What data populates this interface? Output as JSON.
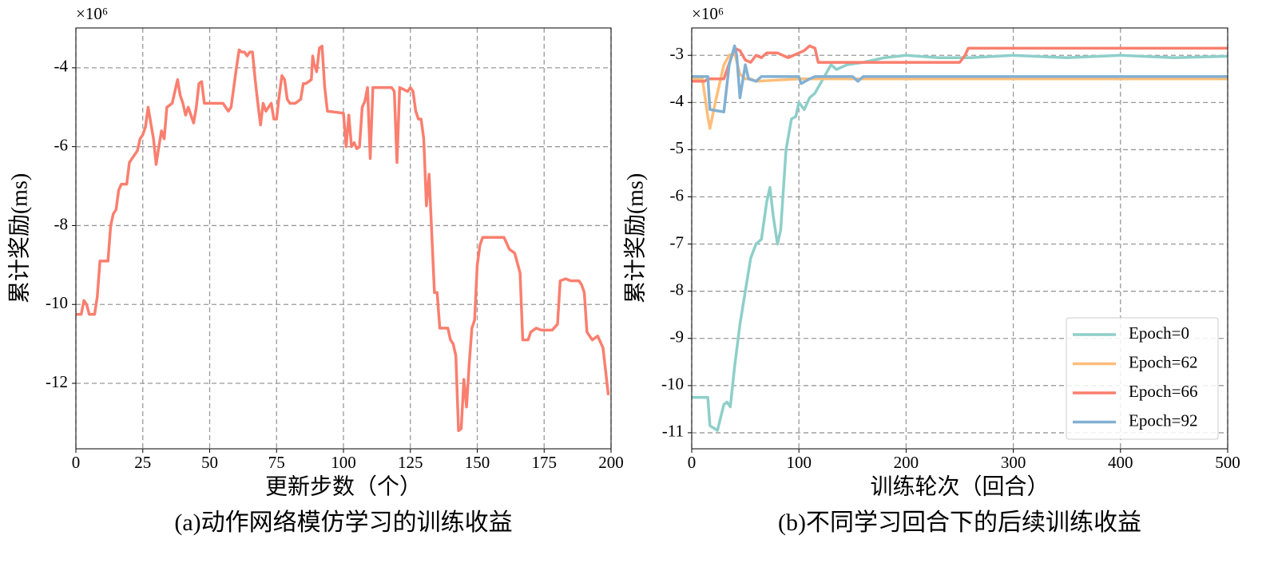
{
  "chart_data": [
    {
      "type": "line",
      "caption": "(a)动作网络模仿学习的训练收益",
      "x_label": "更新步数（个）",
      "y_label": "累计奖励(ms)",
      "y_scale_label": "×10⁶",
      "color": "#fa7f6f",
      "grid": true,
      "xlim": [
        0,
        200
      ],
      "xticks": [
        0,
        25,
        50,
        75,
        100,
        125,
        150,
        175,
        200
      ],
      "ylim": [
        -13.66,
        -2.99
      ],
      "yticks": [
        -12,
        -10,
        -8,
        -6,
        -4
      ],
      "x": [
        0,
        2,
        3,
        4,
        5,
        7,
        8,
        9,
        12,
        13,
        14,
        15,
        16,
        17,
        19,
        20,
        22,
        23,
        24,
        25,
        26,
        27,
        28,
        29,
        30,
        31,
        32,
        33,
        34,
        35,
        36,
        37,
        38,
        39,
        40,
        41,
        42,
        44,
        45,
        46,
        47,
        48,
        50,
        55,
        57,
        58,
        60,
        61,
        62,
        63,
        64,
        65,
        66,
        67,
        68,
        69,
        70,
        71,
        72,
        73,
        74,
        75,
        76,
        77,
        78,
        79,
        80,
        82,
        84,
        85,
        86,
        88,
        88.5,
        89,
        90,
        91,
        92,
        93,
        94,
        100,
        101,
        102,
        103,
        104,
        105,
        106,
        107,
        108,
        109,
        110,
        111,
        118,
        119,
        120,
        121,
        124,
        125,
        126,
        127,
        128,
        129,
        130,
        131,
        132,
        133,
        134,
        135,
        136,
        139,
        140,
        141,
        142,
        143,
        144,
        145,
        146,
        147,
        148,
        149,
        150,
        151,
        152,
        160,
        162,
        164,
        166,
        167,
        169,
        170,
        172,
        174,
        178,
        180,
        181,
        183,
        185,
        188,
        189,
        190,
        191,
        193,
        195,
        197,
        199
      ],
      "values": [
        -10.25,
        -10.25,
        -9.9,
        -10.0,
        -10.25,
        -10.25,
        -9.8,
        -8.9,
        -8.9,
        -8.0,
        -7.7,
        -7.6,
        -7.1,
        -6.95,
        -6.95,
        -6.4,
        -6.2,
        -6.1,
        -5.8,
        -5.7,
        -5.5,
        -5.0,
        -5.4,
        -5.8,
        -6.45,
        -6.0,
        -5.6,
        -5.8,
        -5.0,
        -4.95,
        -4.9,
        -4.6,
        -4.3,
        -4.7,
        -4.9,
        -5.2,
        -5.0,
        -5.4,
        -5.0,
        -4.4,
        -4.35,
        -4.9,
        -4.9,
        -4.9,
        -5.1,
        -5.0,
        -4.0,
        -3.55,
        -3.6,
        -3.6,
        -3.7,
        -3.6,
        -3.6,
        -4.3,
        -4.9,
        -5.45,
        -4.9,
        -5.1,
        -5.0,
        -4.9,
        -5.3,
        -5.3,
        -4.7,
        -4.2,
        -4.3,
        -4.8,
        -4.9,
        -4.9,
        -4.8,
        -4.4,
        -4.4,
        -4.3,
        -3.7,
        -3.9,
        -4.1,
        -3.5,
        -3.45,
        -4.5,
        -5.1,
        -5.15,
        -6.0,
        -5.2,
        -6.0,
        -5.9,
        -6.05,
        -6.0,
        -5.0,
        -4.85,
        -4.5,
        -6.3,
        -4.5,
        -4.5,
        -4.6,
        -6.4,
        -4.5,
        -4.6,
        -4.5,
        -4.6,
        -5.1,
        -5.3,
        -5.3,
        -5.8,
        -7.5,
        -6.7,
        -8.2,
        -9.7,
        -9.7,
        -10.6,
        -10.6,
        -10.9,
        -11.0,
        -11.3,
        -13.2,
        -13.15,
        -11.9,
        -12.6,
        -11.5,
        -10.6,
        -10.4,
        -9.0,
        -8.5,
        -8.3,
        -8.3,
        -8.6,
        -8.7,
        -9.2,
        -10.9,
        -10.9,
        -10.7,
        -10.6,
        -10.65,
        -10.65,
        -10.5,
        -9.4,
        -9.35,
        -9.4,
        -9.4,
        -9.5,
        -9.7,
        -10.7,
        -10.9,
        -10.8,
        -11.1,
        -12.3
      ]
    },
    {
      "type": "line",
      "caption": "(b)不同学习回合下的后续训练收益",
      "x_label": "训练轮次（回合）",
      "y_label": "累计奖励(ms)",
      "y_scale_label": "×10⁶",
      "grid": true,
      "legend": "lower right",
      "xlim": [
        0,
        500
      ],
      "xticks": [
        0,
        100,
        200,
        300,
        400,
        500
      ],
      "ylim": [
        -11.34,
        -2.42
      ],
      "yticks": [
        -11,
        -10,
        -9,
        -8,
        -7,
        -6,
        -5,
        -4,
        -3
      ],
      "series": [
        {
          "name": "Epoch=0",
          "color": "#8ecfc9",
          "x": [
            0,
            15,
            17,
            24,
            30,
            33,
            36,
            40,
            45,
            50,
            55,
            60,
            65,
            70,
            73,
            76,
            80,
            83,
            88,
            93,
            97,
            100,
            105,
            110,
            115,
            120,
            125,
            130,
            135,
            145,
            160,
            180,
            200,
            230,
            260,
            300,
            350,
            400,
            450,
            500
          ],
          "values": [
            -10.25,
            -10.25,
            -10.85,
            -10.95,
            -10.4,
            -10.35,
            -10.45,
            -9.6,
            -8.7,
            -8.0,
            -7.3,
            -7.0,
            -6.9,
            -6.1,
            -5.8,
            -6.4,
            -7.0,
            -6.7,
            -5.0,
            -4.35,
            -4.3,
            -4.0,
            -4.15,
            -3.9,
            -3.8,
            -3.6,
            -3.4,
            -3.2,
            -3.3,
            -3.2,
            -3.15,
            -3.05,
            -3.0,
            -3.05,
            -3.05,
            -3.0,
            -3.05,
            -3.0,
            -3.05,
            -3.02
          ]
        },
        {
          "name": "Epoch=62",
          "color": "#ffbe7a",
          "x": [
            0,
            10,
            15,
            17,
            22,
            27,
            30,
            35,
            40,
            45,
            50,
            55,
            60,
            100,
            500
          ],
          "values": [
            -3.5,
            -3.5,
            -4.3,
            -4.55,
            -4.0,
            -3.5,
            -3.2,
            -3.0,
            -2.95,
            -3.4,
            -3.5,
            -3.5,
            -3.55,
            -3.5,
            -3.5
          ]
        },
        {
          "name": "Epoch=66",
          "color": "#fa7f6f",
          "x": [
            0,
            12,
            15,
            30,
            33,
            40,
            45,
            50,
            55,
            60,
            65,
            70,
            80,
            90,
            100,
            105,
            110,
            115,
            118,
            150,
            250,
            255,
            258,
            500
          ],
          "values": [
            -3.55,
            -3.55,
            -3.5,
            -3.5,
            -3.3,
            -2.85,
            -2.9,
            -3.1,
            -3.15,
            -3.0,
            -3.05,
            -2.95,
            -2.95,
            -3.05,
            -2.95,
            -2.9,
            -2.8,
            -2.85,
            -3.15,
            -3.15,
            -3.15,
            -3.0,
            -2.85,
            -2.85
          ]
        },
        {
          "name": "Epoch=92",
          "color": "#82b0d2",
          "x": [
            0,
            15,
            17,
            30,
            35,
            40,
            42,
            45,
            50,
            53,
            60,
            65,
            100,
            102,
            110,
            115,
            150,
            155,
            160,
            500
          ],
          "values": [
            -3.45,
            -3.45,
            -4.15,
            -4.2,
            -3.2,
            -2.8,
            -3.0,
            -3.9,
            -3.2,
            -3.5,
            -3.55,
            -3.45,
            -3.45,
            -3.6,
            -3.5,
            -3.45,
            -3.45,
            -3.55,
            -3.45,
            -3.45
          ]
        }
      ]
    }
  ]
}
